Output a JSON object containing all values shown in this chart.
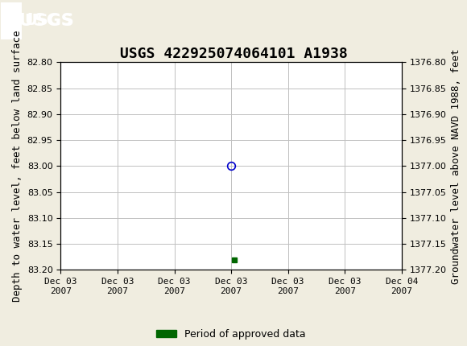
{
  "title": "USGS 422925074064101 A1938",
  "title_fontsize": 13,
  "header_color": "#1a6b3c",
  "background_color": "#f0ede0",
  "plot_background": "#ffffff",
  "grid_color": "#c0c0c0",
  "left_ylabel": "Depth to water level, feet below land surface",
  "right_ylabel": "Groundwater level above NAVD 1988, feet",
  "ylabel_fontsize": 9,
  "ylim_left": [
    82.8,
    83.2
  ],
  "ylim_right": [
    1376.8,
    1377.2
  ],
  "yticks_left": [
    82.8,
    82.85,
    82.9,
    82.95,
    83.0,
    83.05,
    83.1,
    83.15,
    83.2
  ],
  "yticks_right": [
    1376.8,
    1376.85,
    1376.9,
    1376.95,
    1377.0,
    1377.05,
    1377.1,
    1377.15,
    1377.2
  ],
  "xlim": [
    0,
    6
  ],
  "xtick_labels": [
    "Dec 03\n2007",
    "Dec 03\n2007",
    "Dec 03\n2007",
    "Dec 03\n2007",
    "Dec 03\n2007",
    "Dec 03\n2007",
    "Dec 04\n2007"
  ],
  "xtick_positions": [
    0,
    1,
    2,
    3,
    4,
    5,
    6
  ],
  "circle_point_x": 3,
  "circle_point_y": 83.0,
  "circle_color": "#0000cc",
  "green_square_x": 3.05,
  "green_square_y": 83.18,
  "green_color": "#006600",
  "legend_label": "Period of approved data",
  "legend_color": "#006600",
  "tick_fontsize": 8,
  "font_family": "monospace"
}
